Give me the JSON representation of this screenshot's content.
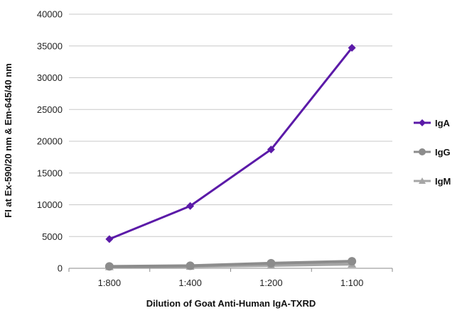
{
  "chart_data": {
    "type": "line",
    "title": "",
    "xlabel": "Dilution of Goat Anti-Human IgA-TXRD",
    "ylabel": "FI at Ex-590/20 nm & Em-645/40 nm",
    "categories": [
      "1:800",
      "1:400",
      "1:200",
      "1:100"
    ],
    "ylim": [
      0,
      40000
    ],
    "yticks": [
      0,
      5000,
      10000,
      15000,
      20000,
      25000,
      30000,
      35000,
      40000
    ],
    "grid": "horizontal",
    "legend": "right",
    "series": [
      {
        "name": "IgA",
        "values": [
          4600,
          9800,
          18700,
          34700
        ],
        "color": "#5b1aa8",
        "marker": "diamond"
      },
      {
        "name": "IgG",
        "values": [
          300,
          400,
          800,
          1100
        ],
        "color": "#8c8c8c",
        "marker": "circle"
      },
      {
        "name": "IgM",
        "values": [
          250,
          300,
          450,
          650
        ],
        "color": "#a6a6a6",
        "marker": "triangle"
      }
    ]
  }
}
